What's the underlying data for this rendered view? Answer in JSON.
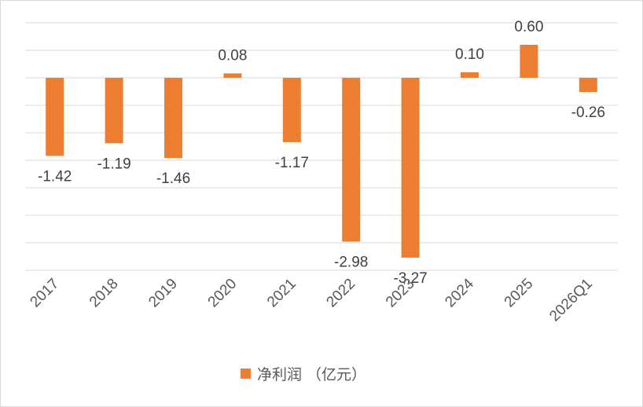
{
  "chart_data": {
    "type": "bar",
    "categories": [
      "2017",
      "2018",
      "2019",
      "2020",
      "2021",
      "2022",
      "2023",
      "2024",
      "2025",
      "2026Q1"
    ],
    "series": [
      {
        "name": "净利润 （亿元）",
        "values": [
          -1.42,
          -1.19,
          -1.46,
          0.08,
          -1.17,
          -2.98,
          -3.27,
          0.1,
          0.6,
          -0.26
        ],
        "data_labels": [
          "-1.42",
          "-1.19",
          "-1.46",
          "0.08",
          "-1.17",
          "-2.98",
          "-3.27",
          "0.10",
          "0.60",
          "-0.26"
        ],
        "color": "#ed7d31"
      }
    ],
    "ylim": [
      -3.5,
      1.0
    ],
    "grid": true,
    "legend": "bottom-center",
    "title": "",
    "xlabel": "",
    "ylabel": ""
  }
}
